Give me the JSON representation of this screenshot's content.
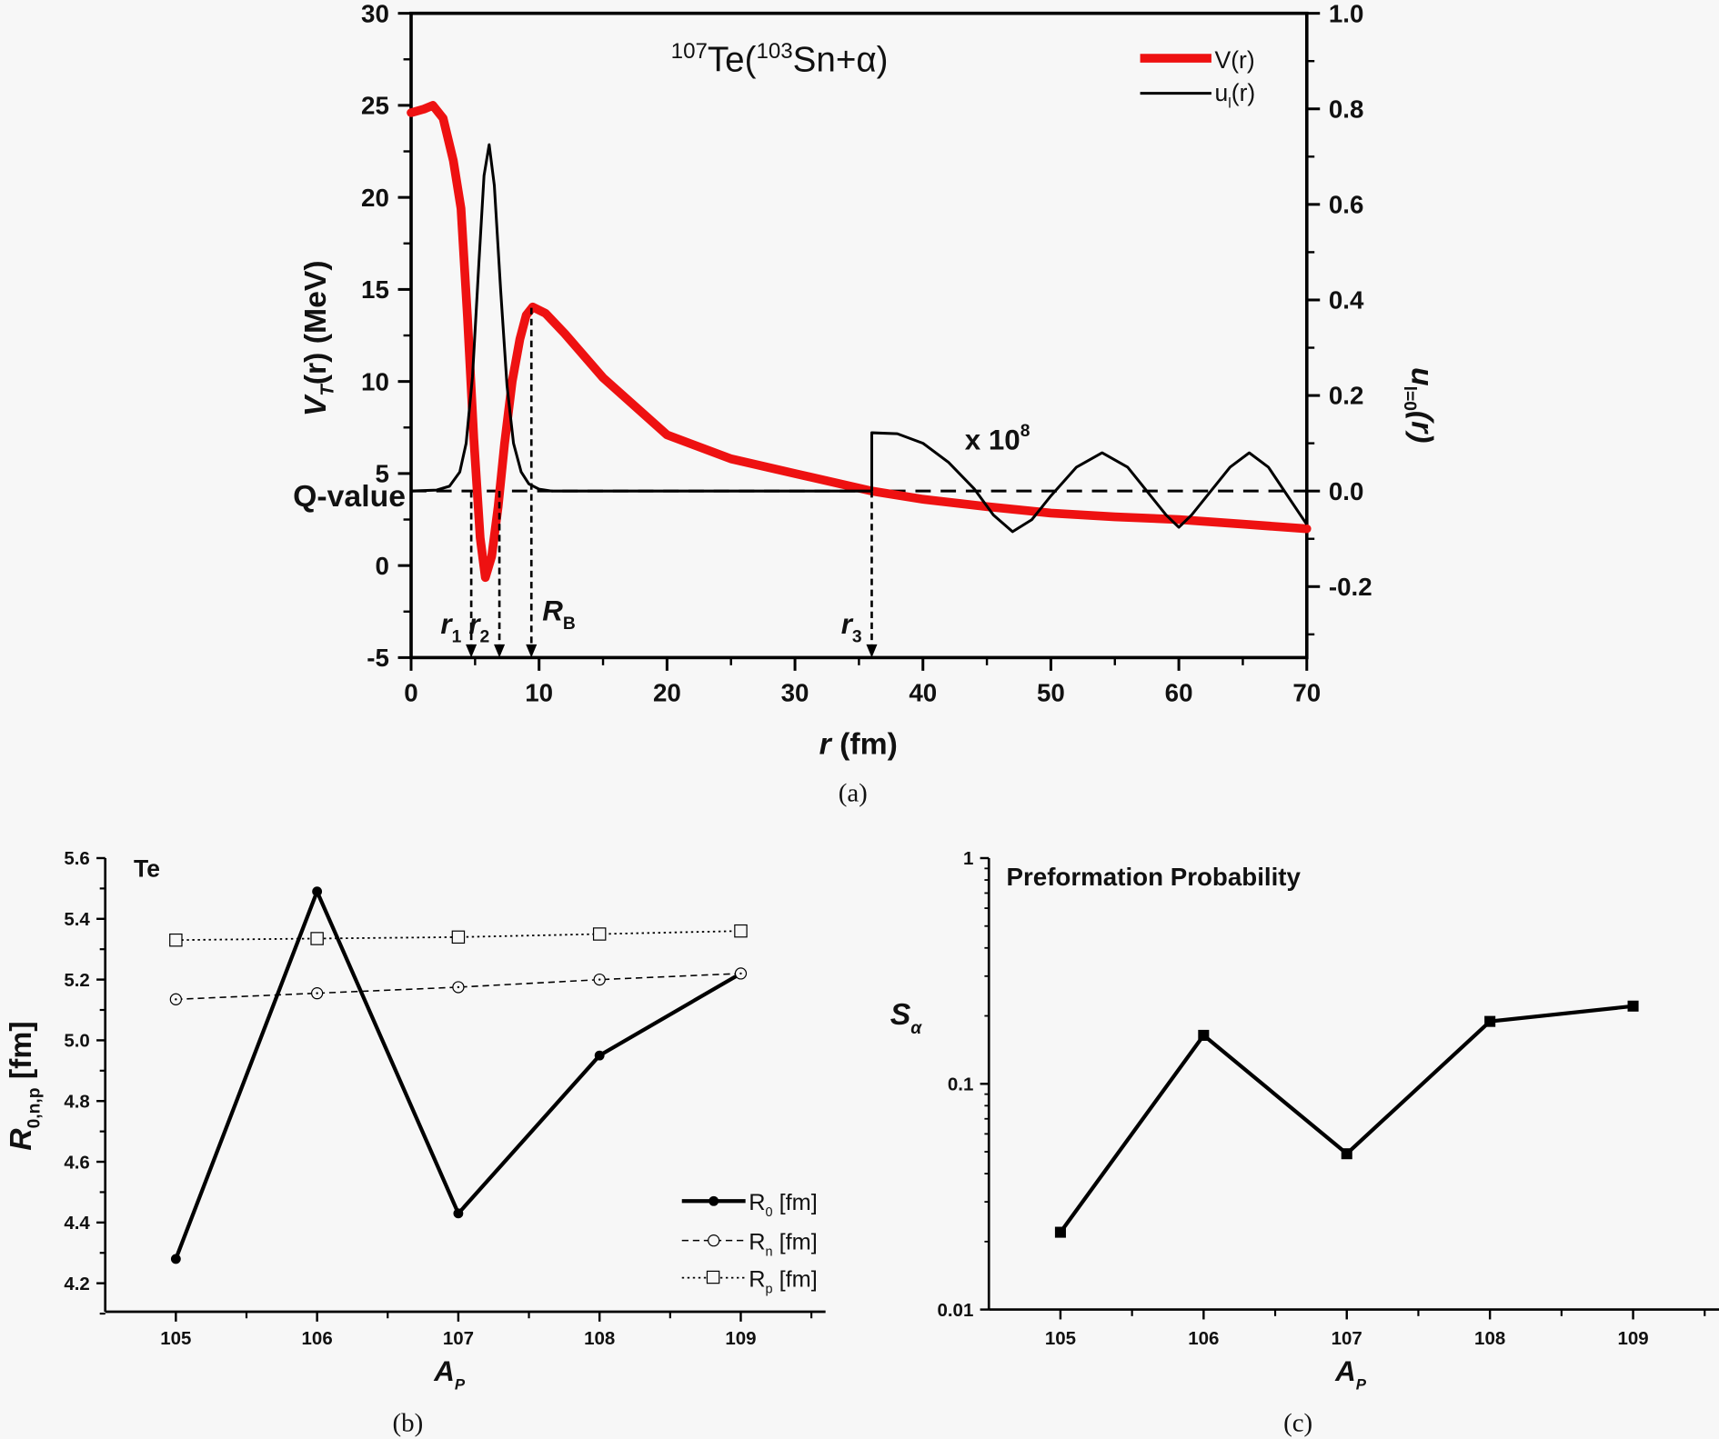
{
  "chart_data": [
    {
      "panel": "(a)",
      "type": "line",
      "title": "107Te(103Sn+α)",
      "title_parts": {
        "mass_parent": "107",
        "parent": "Te(",
        "mass_daughter": "103",
        "daughter": "Sn+α)"
      },
      "xlabel": "r (fm)",
      "ylabel_left": "V_T(r) (MeV)",
      "ylabel_right": "u_l=0(r)",
      "xlim": [
        0,
        70
      ],
      "ylim_left": [
        -5,
        30
      ],
      "ylim_right": [
        -0.35,
        1.0
      ],
      "x_ticks": [
        "0",
        "10",
        "20",
        "30",
        "40",
        "50",
        "60",
        "70"
      ],
      "y_ticks_left": [
        "-5",
        "0",
        "5",
        "10",
        "15",
        "20",
        "25",
        "30"
      ],
      "y_ticks_right": [
        "-0.2",
        "0.0",
        "0.2",
        "0.4",
        "0.6",
        "0.8",
        "1.0"
      ],
      "legend": {
        "position": "top-right",
        "entries": [
          "V(r)",
          "u_l(r)"
        ]
      },
      "colors": {
        "potential": "#ee1111",
        "wavefunction": "#000000"
      },
      "q_value_label": "Q-value",
      "q_value_MeV": 4.05,
      "scale_annotation": "x 10",
      "scale_exponent": "8",
      "turning_points": [
        {
          "label": "r",
          "sub": "1",
          "r": 4.7
        },
        {
          "label": "r",
          "sub": "2",
          "r": 6.9
        },
        {
          "label": "R",
          "sub": "B",
          "r": 9.4
        },
        {
          "label": "r",
          "sub": "3",
          "r": 36.0
        }
      ],
      "series": [
        {
          "name": "V(r)",
          "axis": "left",
          "x": [
            0,
            1.0,
            1.7,
            2.5,
            3.3,
            3.9,
            4.4,
            4.9,
            5.4,
            5.8,
            6.3,
            6.8,
            7.3,
            7.9,
            8.5,
            9.0,
            9.5,
            10.5,
            12,
            15,
            20,
            25,
            30,
            36,
            40,
            45,
            50,
            55,
            60,
            65,
            70
          ],
          "y": [
            24.6,
            24.8,
            25.0,
            24.3,
            22.0,
            19.4,
            13.5,
            6.9,
            1.5,
            -0.65,
            0.5,
            3.2,
            6.6,
            10.0,
            12.3,
            13.6,
            14.05,
            13.7,
            12.6,
            10.2,
            7.1,
            5.8,
            5.0,
            4.05,
            3.6,
            3.2,
            2.85,
            2.65,
            2.5,
            2.25,
            2.0
          ]
        },
        {
          "name": "u_l(r)",
          "axis": "right",
          "x": [
            0,
            2.0,
            3.0,
            3.8,
            4.3,
            4.8,
            5.3,
            5.7,
            6.1,
            6.5,
            7.0,
            7.5,
            8.0,
            8.6,
            9.2,
            10.0,
            11.0,
            20,
            36.0
          ],
          "y": [
            0,
            0.002,
            0.01,
            0.04,
            0.1,
            0.24,
            0.48,
            0.66,
            0.725,
            0.64,
            0.42,
            0.22,
            0.1,
            0.04,
            0.015,
            0.004,
            0.0,
            0.0,
            0.0
          ]
        },
        {
          "name": "u_l(r) x 1e8 tail",
          "axis": "right",
          "x": [
            36.0,
            36.0,
            38,
            40,
            42,
            44,
            45.5,
            47,
            48.5,
            50,
            52,
            54,
            56,
            57.5,
            59,
            60,
            61,
            62.5,
            64,
            65.5,
            67,
            68.5,
            70
          ],
          "y": [
            0.0,
            0.122,
            0.12,
            0.1,
            0.06,
            0.005,
            -0.05,
            -0.085,
            -0.06,
            -0.01,
            0.05,
            0.08,
            0.05,
            0.0,
            -0.05,
            -0.076,
            -0.05,
            0.0,
            0.05,
            0.08,
            0.05,
            -0.01,
            -0.07
          ]
        }
      ]
    },
    {
      "panel": "(b)",
      "type": "line",
      "title": "Te",
      "xlabel": "A_P",
      "ylabel": "R_0,n,p [fm]",
      "xlim": [
        104.5,
        109.6
      ],
      "ylim": [
        4.1,
        5.6
      ],
      "x_ticks": [
        "105",
        "106",
        "107",
        "108",
        "109"
      ],
      "y_ticks": [
        "4.2",
        "4.4",
        "4.6",
        "4.8",
        "5.0",
        "5.2",
        "5.4",
        "5.6"
      ],
      "legend": {
        "position": "bottom-right",
        "entries": [
          "R0 [fm]",
          "Rn [fm]",
          "Rp [fm]"
        ]
      },
      "categories": [
        105,
        106,
        107,
        108,
        109
      ],
      "series": [
        {
          "name": "R0 [fm]",
          "sub": "0",
          "style": "solid",
          "marker": "filled-circle",
          "values": [
            4.28,
            5.49,
            4.43,
            4.95,
            5.22
          ]
        },
        {
          "name": "Rn [fm]",
          "sub": "n",
          "style": "dashed",
          "marker": "open-circle",
          "values": [
            5.135,
            5.155,
            5.175,
            5.2,
            5.22
          ]
        },
        {
          "name": "Rp [fm]",
          "sub": "p",
          "style": "dotted",
          "marker": "open-square",
          "values": [
            5.33,
            5.335,
            5.34,
            5.35,
            5.36
          ]
        }
      ]
    },
    {
      "panel": "(c)",
      "type": "line",
      "title": "Preformation Probability",
      "xlabel": "A_P",
      "ylabel": "S_α",
      "yscale": "log",
      "xlim": [
        104.5,
        109.6
      ],
      "ylim": [
        0.01,
        1
      ],
      "x_ticks": [
        "105",
        "106",
        "107",
        "108",
        "109"
      ],
      "y_ticks": [
        "0.01",
        "0.1",
        "1"
      ],
      "categories": [
        105,
        106,
        107,
        108,
        109
      ],
      "series": [
        {
          "name": "S_alpha",
          "marker": "filled-square",
          "values": [
            0.022,
            0.164,
            0.049,
            0.189,
            0.221
          ]
        }
      ]
    }
  ],
  "captions": {
    "a": "(a)",
    "b": "(b)",
    "c": "(c)"
  },
  "labels": {
    "a_xlabel_var": "r",
    "a_xlabel_unit": " (fm)",
    "a_ylabel_V": "V",
    "a_ylabel_sub": "T",
    "a_ylabel_rest": "(r) (MeV)",
    "a_ylabel_right_u": "u",
    "a_ylabel_right_sub": "l=0",
    "a_ylabel_right_rest": "(r)",
    "legend_v": "V(r)",
    "legend_u": "u",
    "legend_u_sub": "l",
    "legend_u_rest": "(r)",
    "b_ylabel_R": "R",
    "b_ylabel_sub": "0,n,p",
    "b_ylabel_unit": " [fm]",
    "ap_A": "A",
    "ap_sub": "P",
    "b_leg_R": "R",
    "b_leg_unit": " [fm]",
    "c_ylabel_S": "S",
    "c_ylabel_sub": "α"
  }
}
